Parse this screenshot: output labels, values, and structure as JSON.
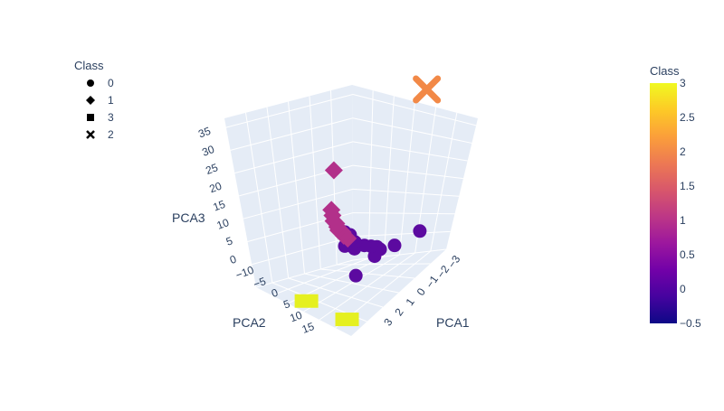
{
  "chart_data": {
    "type": "scatter3d",
    "axes": {
      "x": {
        "label": "PCA1",
        "range": [
          -4,
          3
        ],
        "ticks": [
          -3,
          -2,
          -1,
          0,
          1,
          2,
          3
        ]
      },
      "y": {
        "label": "PCA2",
        "range": [
          -12,
          18
        ],
        "ticks": [
          -10,
          -5,
          0,
          5,
          10,
          15
        ]
      },
      "z": {
        "label": "PCA3",
        "range": [
          0,
          37
        ],
        "ticks": [
          0,
          5,
          10,
          15,
          20,
          25,
          30,
          35
        ]
      }
    },
    "legend": {
      "title": "Class",
      "placement": "top-left",
      "entries": [
        {
          "label": "0",
          "symbol": "circle"
        },
        {
          "label": "1",
          "symbol": "diamond"
        },
        {
          "label": "3",
          "symbol": "square"
        },
        {
          "label": "2",
          "symbol": "x"
        }
      ]
    },
    "colorbar": {
      "title": "Class",
      "range": [
        -0.5,
        3
      ],
      "ticks": [
        "3",
        "2.5",
        "2",
        "1.5",
        "1",
        "0.5",
        "0",
        "−0.5"
      ],
      "tick_values": [
        3,
        2.5,
        2,
        1.5,
        1,
        0.5,
        0,
        -0.5
      ],
      "colors": [
        "#0d0887",
        "#46039f",
        "#7201a8",
        "#9c179e",
        "#bd3786",
        "#d8576b",
        "#ed7953",
        "#fb9f3a",
        "#fdca26",
        "#f0f921"
      ]
    },
    "series": [
      {
        "class": 0,
        "symbol": "circle",
        "color": "#5c0aa0",
        "points": [
          [
            -2.5,
            -10,
            5.5
          ],
          [
            -1.8,
            -5,
            5
          ],
          [
            -1.2,
            -3,
            5
          ],
          [
            -1.5,
            0,
            5
          ],
          [
            -1.2,
            -2,
            6
          ],
          [
            -1,
            -1,
            6.5
          ],
          [
            -0.5,
            -1,
            6.5
          ],
          [
            0,
            0,
            6
          ],
          [
            0.2,
            -1,
            7
          ],
          [
            0.5,
            -1,
            7.5
          ],
          [
            0.6,
            0.5,
            6.5
          ],
          [
            0.8,
            -2,
            8
          ],
          [
            1.2,
            -2,
            8.5
          ],
          [
            -2,
            8,
            5
          ]
        ]
      },
      {
        "class": 1,
        "symbol": "diamond",
        "color": "#b2308a",
        "points": [
          [
            0.5,
            0,
            8
          ],
          [
            0.8,
            0,
            8.5
          ],
          [
            1,
            -0.5,
            9
          ],
          [
            1.2,
            0,
            9.5
          ],
          [
            1.4,
            -0.5,
            10
          ],
          [
            1.6,
            -1,
            10.5
          ],
          [
            1.8,
            -1,
            11
          ],
          [
            2,
            -1.5,
            12
          ],
          [
            2.2,
            -2,
            13
          ],
          [
            2.5,
            -4,
            21
          ]
        ]
      },
      {
        "class": 3,
        "symbol": "square",
        "color": "#e5f020",
        "points": [
          [
            -3,
            15,
            0.5
          ],
          [
            0,
            15,
            0.5
          ]
        ]
      },
      {
        "class": 2,
        "symbol": "x",
        "color": "#f28947",
        "points": [
          [
            -3.5,
            -8,
            37
          ]
        ]
      }
    ]
  }
}
